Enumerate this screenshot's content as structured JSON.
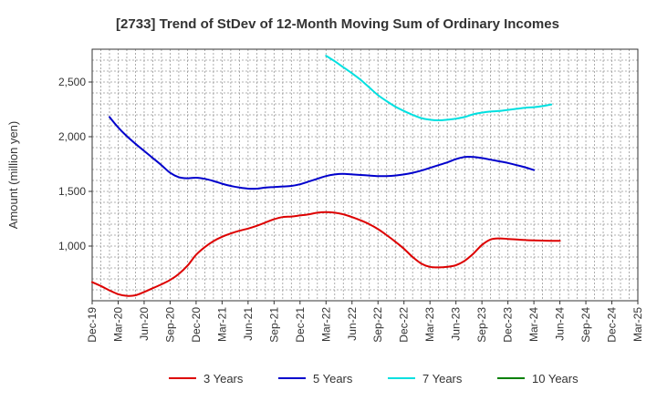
{
  "chart_data": {
    "type": "line",
    "title": "[2733]  Trend of StDev of 12-Month Moving Sum of Ordinary Incomes",
    "ylabel": "Amount (million yen)",
    "xlabel": "",
    "x_ticks": [
      "Dec-19",
      "Mar-20",
      "Jun-20",
      "Sep-20",
      "Dec-20",
      "Mar-21",
      "Jun-21",
      "Sep-21",
      "Dec-21",
      "Mar-22",
      "Jun-22",
      "Sep-22",
      "Dec-22",
      "Mar-23",
      "Jun-23",
      "Sep-23",
      "Dec-23",
      "Mar-24",
      "Jun-24",
      "Sep-24",
      "Dec-24",
      "Mar-25"
    ],
    "y_ticks": [
      1000,
      1500,
      2000,
      2500
    ],
    "y_tick_labels": [
      "1,000",
      "1,500",
      "2,000",
      "2,500"
    ],
    "ylim": [
      500,
      2800
    ],
    "grid": true,
    "legend_position": "bottom",
    "series": [
      {
        "name": "3 Years",
        "color": "#dd0000",
        "start_index": 0,
        "values": [
          670,
          635,
          595,
          560,
          545,
          550,
          580,
          615,
          650,
          690,
          745,
          820,
          920,
          990,
          1045,
          1085,
          1115,
          1140,
          1160,
          1185,
          1215,
          1245,
          1265,
          1270,
          1280,
          1290,
          1305,
          1310,
          1305,
          1290,
          1265,
          1235,
          1200,
          1155,
          1100,
          1040,
          975,
          900,
          840,
          810,
          805,
          810,
          825,
          865,
          930,
          1010,
          1060,
          1070,
          1065,
          1060,
          1055,
          1052,
          1050,
          1048,
          1048
        ]
      },
      {
        "name": "5 Years",
        "color": "#0000cc",
        "start_index": 2,
        "values": [
          2180,
          2085,
          2005,
          1935,
          1870,
          1805,
          1740,
          1670,
          1630,
          1620,
          1625,
          1615,
          1595,
          1570,
          1550,
          1535,
          1525,
          1525,
          1535,
          1540,
          1545,
          1550,
          1565,
          1590,
          1615,
          1640,
          1655,
          1660,
          1655,
          1650,
          1645,
          1640,
          1640,
          1645,
          1655,
          1670,
          1690,
          1715,
          1740,
          1765,
          1795,
          1815,
          1815,
          1805,
          1790,
          1775,
          1760,
          1740,
          1720,
          1695
        ]
      },
      {
        "name": "7 Years",
        "color": "#00e0e0",
        "start_index": 27,
        "values": [
          2740,
          2690,
          2635,
          2580,
          2520,
          2450,
          2380,
          2325,
          2275,
          2235,
          2200,
          2170,
          2155,
          2150,
          2155,
          2165,
          2180,
          2205,
          2220,
          2230,
          2235,
          2245,
          2255,
          2265,
          2270,
          2280,
          2295
        ]
      },
      {
        "name": "10 Years",
        "color": "#008000",
        "start_index": 0,
        "values": []
      }
    ]
  }
}
